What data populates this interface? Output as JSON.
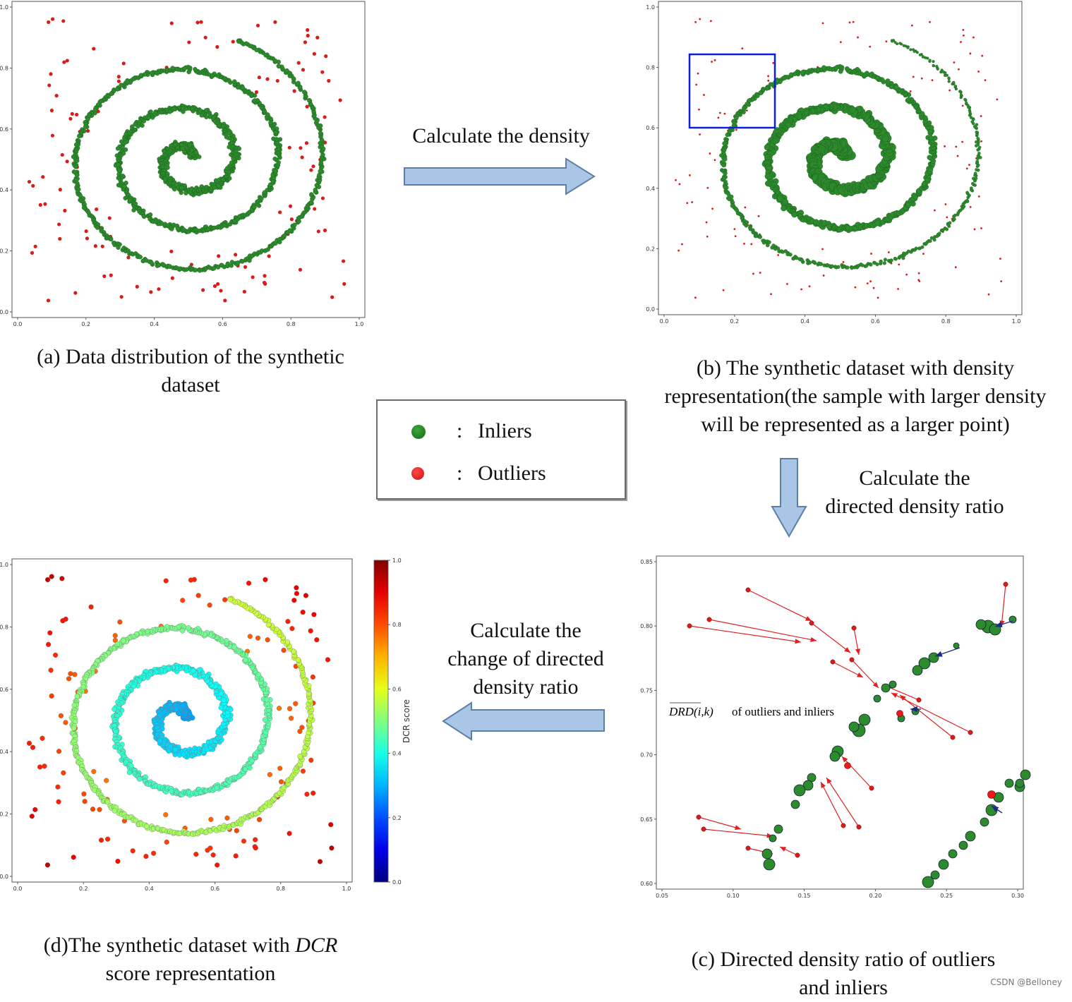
{
  "panels": {
    "a": {
      "caption_line1": "(a) Data distribution of the synthetic",
      "caption_line2": "dataset"
    },
    "b": {
      "caption_line1": "(b) The synthetic dataset with density",
      "caption_line2": "representation(the sample with larger density",
      "caption_line3": "will be represented as a larger point)"
    },
    "c": {
      "caption_line1": "(c) Directed density ratio of outliers",
      "caption_line2": "and inliers",
      "annotation_formula": "DRD(i,k)",
      "annotation_text": "of outliers and inliers"
    },
    "d": {
      "caption_prefix": "(d)The synthetic dataset with ",
      "caption_italic": "DCR",
      "caption_line2": "score representation",
      "colorbar_label": "DCR score"
    }
  },
  "arrows": {
    "a_to_b": "Calculate the density",
    "b_to_c_line1": "Calculate the",
    "b_to_c_line2": "directed density ratio",
    "c_to_d_line1": "Calculate the",
    "c_to_d_line2": "change of directed",
    "c_to_d_line3": "density ratio"
  },
  "legend": {
    "inliers": {
      "label": "Inliers",
      "color": "#1a7a1a"
    },
    "outliers": {
      "label": "Outliers",
      "color": "#e8191a"
    },
    "separator": ":"
  },
  "axes": {
    "unit_ticks": [
      "0.0",
      "0.2",
      "0.4",
      "0.6",
      "0.8",
      "1.0"
    ],
    "c_x_ticks": [
      "0.05",
      "0.10",
      "0.15",
      "0.20",
      "0.25",
      "0.30"
    ],
    "c_y_ticks": [
      "0.60",
      "0.65",
      "0.70",
      "0.75",
      "0.80",
      "0.85"
    ]
  },
  "colors": {
    "inlier": "#2d8a2d",
    "outlier": "#d81c1c",
    "arrow_fill": "#a9c6e6",
    "arrow_stroke": "#5d7fa5",
    "blue_box": "#0b1fd6",
    "drd_arrow_red": "#e02020",
    "drd_arrow_blue": "#1a2a8a"
  },
  "watermark": "CSDN @Belloney"
}
